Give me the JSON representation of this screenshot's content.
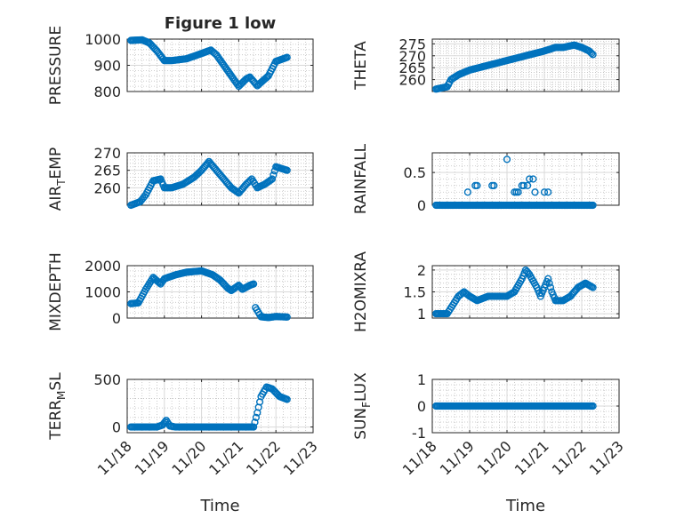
{
  "figure": {
    "title": "Figure 1 low"
  },
  "colors": {
    "marker": "#0072BD",
    "axis": "#262626",
    "background": "#ffffff"
  },
  "chart_data": [
    {
      "id": "pressure",
      "type": "scatter",
      "title": "Figure 1 low",
      "ylabel": "PRESSURE",
      "ylabel_sub": "",
      "ylim": [
        800,
        1000
      ],
      "yticks": [
        800,
        900,
        1000
      ],
      "ytick_labels": [
        "800",
        "900",
        "1000"
      ],
      "xlim": [
        0,
        5
      ],
      "xticks": [
        0,
        1,
        2,
        3,
        4,
        5
      ],
      "xtick_labels": [
        "11/18",
        "11/19",
        "11/20",
        "11/21",
        "11/22",
        "11/23"
      ],
      "show_xtick_labels": false,
      "xlabel": "",
      "keyframes": [
        [
          0.1,
          995
        ],
        [
          0.4,
          997
        ],
        [
          0.6,
          985
        ],
        [
          0.8,
          955
        ],
        [
          1.0,
          918
        ],
        [
          1.2,
          918
        ],
        [
          1.6,
          925
        ],
        [
          1.8,
          935
        ],
        [
          2.0,
          945
        ],
        [
          2.25,
          958
        ],
        [
          2.4,
          940
        ],
        [
          2.6,
          900
        ],
        [
          2.8,
          860
        ],
        [
          3.0,
          820
        ],
        [
          3.2,
          848
        ],
        [
          3.3,
          855
        ],
        [
          3.5,
          822
        ],
        [
          3.8,
          860
        ],
        [
          4.0,
          915
        ],
        [
          4.3,
          930
        ]
      ]
    },
    {
      "id": "theta",
      "type": "scatter",
      "title": "",
      "ylabel": "THETA",
      "ylabel_sub": "",
      "ylim": [
        255,
        277
      ],
      "yticks": [
        260,
        265,
        270,
        275
      ],
      "ytick_labels": [
        "260",
        "265",
        "270",
        "275"
      ],
      "xlim": [
        0,
        5
      ],
      "xticks": [
        0,
        1,
        2,
        3,
        4,
        5
      ],
      "xtick_labels": [
        "11/18",
        "11/19",
        "11/20",
        "11/21",
        "11/22",
        "11/23"
      ],
      "show_xtick_labels": false,
      "xlabel": "",
      "keyframes": [
        [
          0.1,
          256
        ],
        [
          0.4,
          257
        ],
        [
          0.5,
          260
        ],
        [
          0.7,
          262
        ],
        [
          1.0,
          264
        ],
        [
          1.5,
          266
        ],
        [
          2.0,
          268
        ],
        [
          2.5,
          270
        ],
        [
          3.0,
          272
        ],
        [
          3.3,
          273.5
        ],
        [
          3.5,
          273.5
        ],
        [
          3.8,
          274.5
        ],
        [
          4.0,
          273.5
        ],
        [
          4.2,
          272
        ],
        [
          4.3,
          270.5
        ]
      ]
    },
    {
      "id": "air_temp",
      "type": "scatter",
      "title": "",
      "ylabel": "AIR",
      "ylabel_sub": "T",
      "ylabel_suffix": "EMP",
      "ylim": [
        255,
        270
      ],
      "yticks": [
        260,
        265,
        270
      ],
      "ytick_labels": [
        "260",
        "265",
        "270"
      ],
      "xlim": [
        0,
        5
      ],
      "xticks": [
        0,
        1,
        2,
        3,
        4,
        5
      ],
      "xtick_labels": [
        "11/18",
        "11/19",
        "11/20",
        "11/21",
        "11/22",
        "11/23"
      ],
      "show_xtick_labels": false,
      "xlabel": "",
      "keyframes": [
        [
          0.1,
          255
        ],
        [
          0.35,
          256
        ],
        [
          0.5,
          258
        ],
        [
          0.7,
          262
        ],
        [
          0.9,
          262.5
        ],
        [
          1.0,
          260
        ],
        [
          1.2,
          260
        ],
        [
          1.5,
          261
        ],
        [
          1.8,
          263
        ],
        [
          2.0,
          265
        ],
        [
          2.2,
          267.5
        ],
        [
          2.4,
          265
        ],
        [
          2.6,
          262.5
        ],
        [
          2.8,
          260
        ],
        [
          3.0,
          258.5
        ],
        [
          3.2,
          261
        ],
        [
          3.35,
          262.5
        ],
        [
          3.5,
          260
        ],
        [
          3.7,
          261
        ],
        [
          3.9,
          262.5
        ],
        [
          4.0,
          266
        ],
        [
          4.3,
          265
        ]
      ]
    },
    {
      "id": "rainfall",
      "type": "scatter",
      "title": "",
      "ylabel": "RAINFALL",
      "ylabel_sub": "",
      "ylim": [
        0,
        0.8
      ],
      "yticks": [
        0,
        0.5
      ],
      "ytick_labels": [
        "0",
        "0.5"
      ],
      "xlim": [
        0,
        5
      ],
      "xticks": [
        0,
        1,
        2,
        3,
        4,
        5
      ],
      "xtick_labels": [
        "11/18",
        "11/19",
        "11/20",
        "11/21",
        "11/22",
        "11/23"
      ],
      "show_xtick_labels": false,
      "xlabel": "",
      "baseline_range": [
        0.1,
        4.3
      ],
      "baseline_value": 0,
      "points": [
        [
          0.95,
          0.2
        ],
        [
          1.15,
          0.3
        ],
        [
          1.2,
          0.3
        ],
        [
          1.35,
          0
        ],
        [
          1.6,
          0.3
        ],
        [
          1.65,
          0.3
        ],
        [
          1.85,
          0
        ],
        [
          2.0,
          0.7
        ],
        [
          2.2,
          0.2
        ],
        [
          2.25,
          0.2
        ],
        [
          2.3,
          0.2
        ],
        [
          2.35,
          0
        ],
        [
          2.4,
          0.3
        ],
        [
          2.45,
          0.3
        ],
        [
          2.55,
          0.3
        ],
        [
          2.6,
          0.4
        ],
        [
          2.7,
          0.4
        ],
        [
          2.75,
          0.2
        ],
        [
          3.0,
          0.2
        ],
        [
          3.1,
          0.2
        ]
      ]
    },
    {
      "id": "mixdepth",
      "type": "scatter",
      "title": "",
      "ylabel": "MIXDEPTH",
      "ylabel_sub": "",
      "ylim": [
        0,
        2000
      ],
      "yticks": [
        0,
        1000,
        2000
      ],
      "ytick_labels": [
        "0",
        "1000",
        "2000"
      ],
      "xlim": [
        0,
        5
      ],
      "xticks": [
        0,
        1,
        2,
        3,
        4,
        5
      ],
      "xtick_labels": [
        "11/18",
        "11/19",
        "11/20",
        "11/21",
        "11/22",
        "11/23"
      ],
      "show_xtick_labels": false,
      "xlabel": "",
      "keyframes": [
        [
          0.1,
          550
        ],
        [
          0.3,
          580
        ],
        [
          0.5,
          1100
        ],
        [
          0.7,
          1550
        ],
        [
          0.9,
          1300
        ],
        [
          1.0,
          1500
        ],
        [
          1.3,
          1650
        ],
        [
          1.6,
          1750
        ],
        [
          2.0,
          1800
        ],
        [
          2.3,
          1650
        ],
        [
          2.5,
          1450
        ],
        [
          2.7,
          1150
        ],
        [
          2.8,
          1050
        ],
        [
          3.0,
          1250
        ],
        [
          3.1,
          1100
        ],
        [
          3.3,
          1250
        ],
        [
          3.4,
          1300
        ],
        [
          3.45,
          400
        ],
        [
          3.6,
          50
        ],
        [
          3.8,
          20
        ],
        [
          4.0,
          60
        ],
        [
          4.3,
          40
        ]
      ]
    },
    {
      "id": "h2omixra",
      "type": "scatter",
      "title": "",
      "ylabel": "H2OMIXRA",
      "ylabel_sub": "",
      "ylim": [
        0.9,
        2.1
      ],
      "yticks": [
        1,
        1.5,
        2
      ],
      "ytick_labels": [
        "1",
        "1.5",
        "2"
      ],
      "xlim": [
        0,
        5
      ],
      "xticks": [
        0,
        1,
        2,
        3,
        4,
        5
      ],
      "xtick_labels": [
        "11/18",
        "11/19",
        "11/20",
        "11/21",
        "11/22",
        "11/23"
      ],
      "show_xtick_labels": false,
      "xlabel": "",
      "keyframes": [
        [
          0.1,
          1.0
        ],
        [
          0.4,
          1.0
        ],
        [
          0.55,
          1.2
        ],
        [
          0.7,
          1.4
        ],
        [
          0.85,
          1.5
        ],
        [
          1.0,
          1.4
        ],
        [
          1.2,
          1.3
        ],
        [
          1.5,
          1.4
        ],
        [
          2.0,
          1.4
        ],
        [
          2.2,
          1.5
        ],
        [
          2.4,
          1.8
        ],
        [
          2.5,
          2.0
        ],
        [
          2.6,
          1.9
        ],
        [
          2.8,
          1.6
        ],
        [
          2.9,
          1.4
        ],
        [
          3.1,
          1.8
        ],
        [
          3.2,
          1.5
        ],
        [
          3.3,
          1.3
        ],
        [
          3.5,
          1.3
        ],
        [
          3.7,
          1.4
        ],
        [
          3.9,
          1.6
        ],
        [
          4.1,
          1.7
        ],
        [
          4.3,
          1.6
        ]
      ]
    },
    {
      "id": "terr_msl",
      "type": "scatter",
      "title": "",
      "ylabel": "TERR",
      "ylabel_sub": "M",
      "ylabel_suffix": "SL",
      "ylim": [
        -60,
        500
      ],
      "yticks": [
        0,
        500
      ],
      "ytick_labels": [
        "0",
        "500"
      ],
      "xlim": [
        0,
        5
      ],
      "xticks": [
        0,
        1,
        2,
        3,
        4,
        5
      ],
      "xtick_labels": [
        "11/18",
        "11/19",
        "11/20",
        "11/21",
        "11/22",
        "11/23"
      ],
      "show_xtick_labels": true,
      "xlabel": "Time",
      "keyframes": [
        [
          0.1,
          0
        ],
        [
          0.8,
          0
        ],
        [
          0.95,
          20
        ],
        [
          1.05,
          70
        ],
        [
          1.15,
          10
        ],
        [
          1.3,
          0
        ],
        [
          3.2,
          0
        ],
        [
          3.4,
          0
        ],
        [
          3.5,
          150
        ],
        [
          3.6,
          320
        ],
        [
          3.75,
          420
        ],
        [
          3.9,
          400
        ],
        [
          4.1,
          320
        ],
        [
          4.3,
          290
        ]
      ]
    },
    {
      "id": "sun_flux",
      "type": "scatter",
      "title": "",
      "ylabel": "SUN",
      "ylabel_sub": "F",
      "ylabel_suffix": "LUX",
      "ylim": [
        -1,
        1
      ],
      "yticks": [
        -1,
        0,
        1
      ],
      "ytick_labels": [
        "-1",
        "0",
        "1"
      ],
      "xlim": [
        0,
        5
      ],
      "xticks": [
        0,
        1,
        2,
        3,
        4,
        5
      ],
      "xtick_labels": [
        "11/18",
        "11/19",
        "11/20",
        "11/21",
        "11/22",
        "11/23"
      ],
      "show_xtick_labels": true,
      "xlabel": "Time",
      "keyframes": [
        [
          0.1,
          0
        ],
        [
          4.3,
          0
        ]
      ]
    }
  ]
}
